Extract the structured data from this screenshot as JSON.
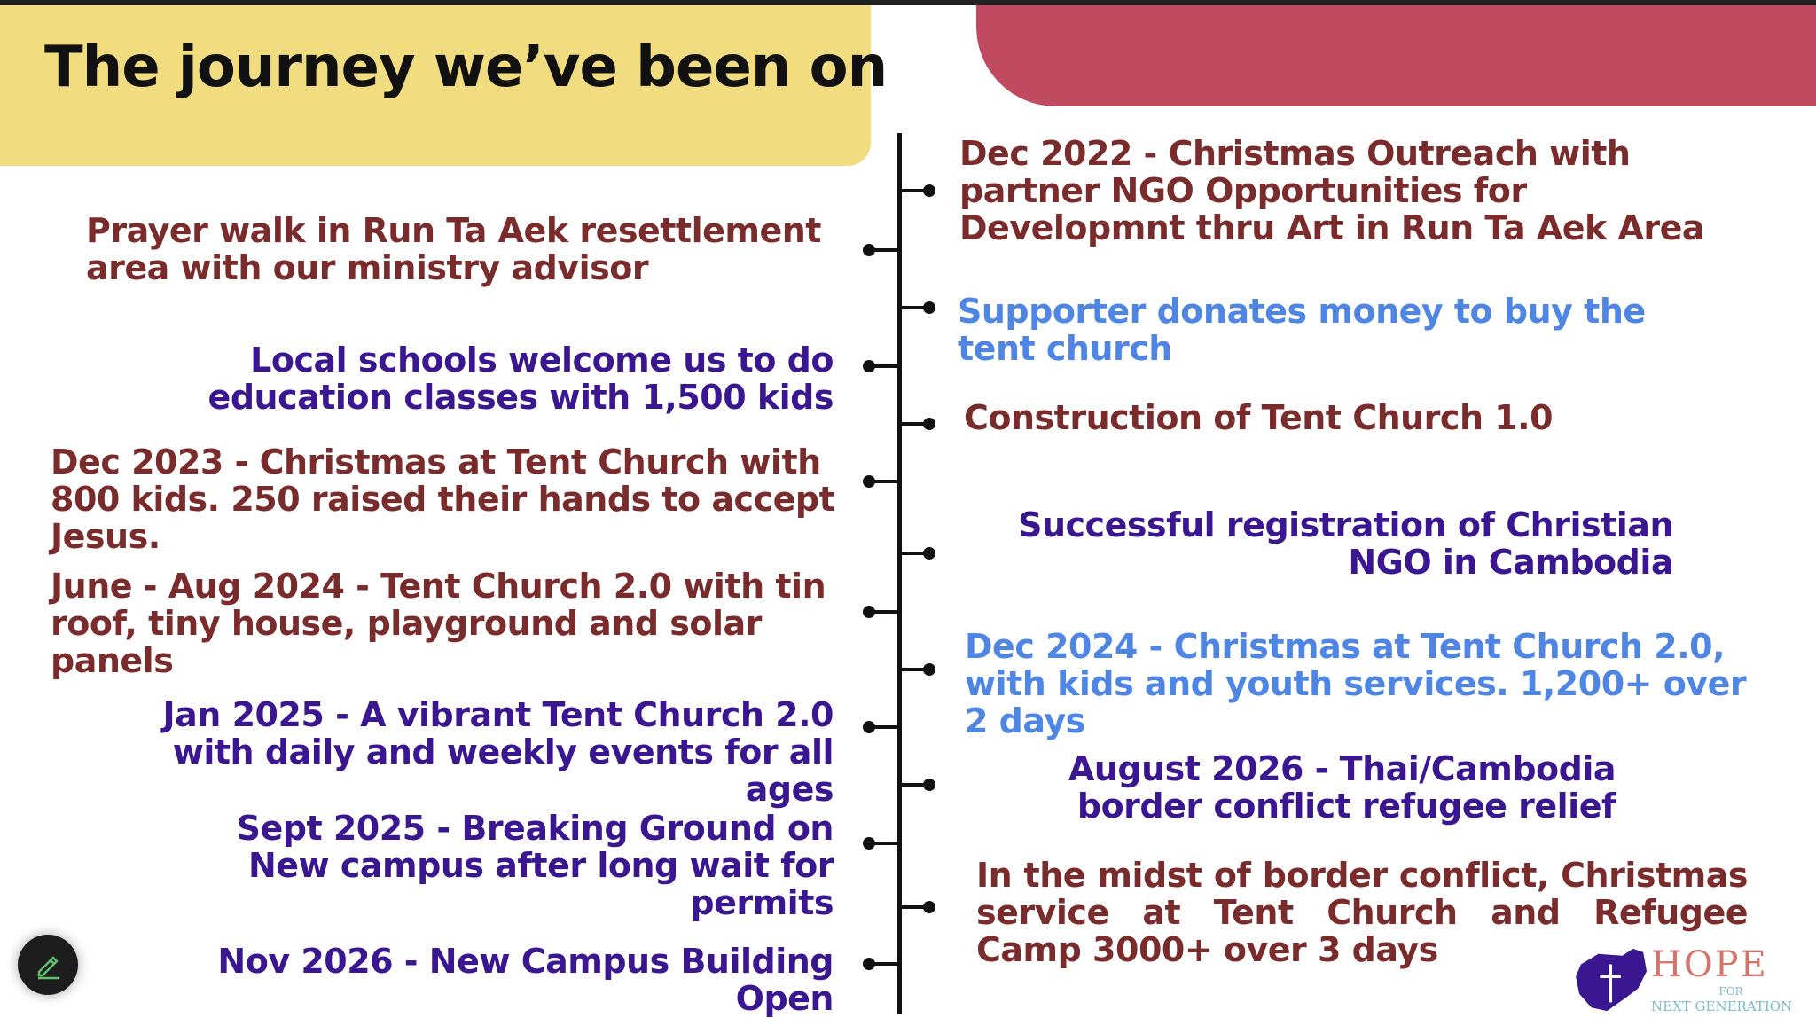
{
  "title": "The journey we’ve been on",
  "colors": {
    "maroon": "#7a2b2b",
    "indigo": "#3a1790",
    "light_blue": "#4f86e4",
    "yellow": "#f1dd7f",
    "red": "#c04a5f"
  },
  "left_items": [
    "Prayer walk in Run Ta Aek resettlement area with our ministry advisor",
    "Local schools welcome us to do education classes with 1,500 kids",
    "Dec 2023 - Christmas at Tent Church with 800 kids. 250 raised their hands to accept Jesus.",
    "June - Aug 2024 - Tent Church 2.0 with tin roof, tiny house, playground and solar panels",
    "Jan 2025 - A vibrant Tent Church 2.0 with daily and weekly events for all ages",
    "Sept 2025 - Breaking Ground on New campus after long wait for permits",
    "Nov 2026 - New Campus Building Open"
  ],
  "right_items": [
    "Dec 2022 - Christmas Outreach with partner NGO Opportunities for Developmnt thru Art in Run Ta Aek Area",
    "Supporter donates money to buy the tent church",
    "Construction of Tent Church 1.0",
    "Successful registration of Christian NGO in Cambodia",
    "Dec 2024 - Christmas at Tent Church 2.0, with kids and youth services.  1,200+ over 2 days",
    "August 2026 - Thai/Cambodia border conflict refugee relief",
    "In the midst of border conflict, Christmas service at Tent Church and Refugee Camp 3000+ over 3 days"
  ],
  "logo": {
    "hope": "HOPE",
    "for": "FOR",
    "next_generation": "NEXT GENERATION"
  },
  "edit_button_icon": "pencil-icon"
}
